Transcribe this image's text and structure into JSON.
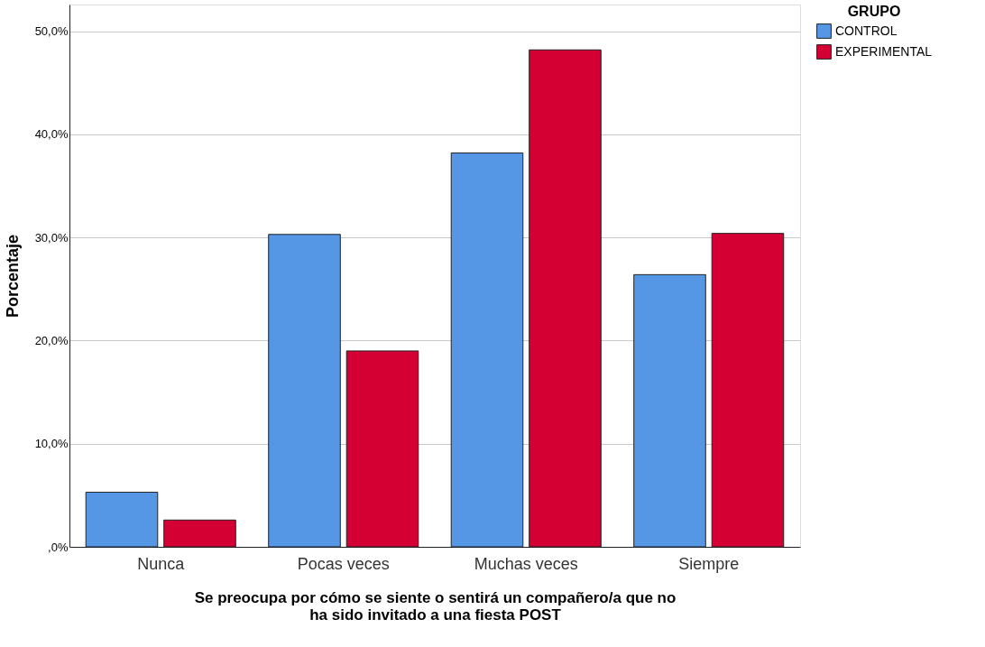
{
  "chart_data": {
    "type": "bar",
    "xlabel": "Se preocupa por cómo se siente o sentirá un compañero/a que no\nha sido invitado a una fiesta POST",
    "ylabel": "Porcentaje",
    "legend_title": "GRUPO",
    "legend": "top right",
    "categories": [
      "Nunca",
      "Pocas veces",
      "Muchas veces",
      "Siempre"
    ],
    "series": [
      {
        "name": "CONTROL",
        "color": "#5596e5",
        "values": [
          5.3,
          30.3,
          38.2,
          26.4
        ]
      },
      {
        "name": "EXPERIMENTAL",
        "color": "#d40033",
        "values": [
          2.6,
          19.0,
          48.2,
          30.4
        ]
      }
    ],
    "ylim": [
      0,
      52.6
    ],
    "yticks": [
      {
        "value": 0,
        "label": ",0%"
      },
      {
        "value": 10,
        "label": "10,0%"
      },
      {
        "value": 20,
        "label": "20,0%"
      },
      {
        "value": 30,
        "label": "30,0%"
      },
      {
        "value": 40,
        "label": "40,0%"
      },
      {
        "value": 50,
        "label": "50,0%"
      }
    ],
    "grid": "y"
  }
}
